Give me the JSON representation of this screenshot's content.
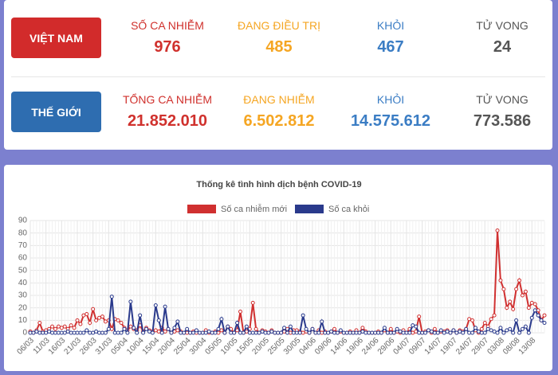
{
  "stats": {
    "rows": [
      {
        "label": "VIỆT NAM",
        "color": "#d22b2b",
        "columns": [
          {
            "label": "SỐ CA NHIỄM",
            "value": "976",
            "color": "#d0312d"
          },
          {
            "label": "ĐANG ĐIỀU TRỊ",
            "value": "485",
            "color": "#f5a623"
          },
          {
            "label": "KHỎI",
            "value": "467",
            "color": "#3b7dc4"
          },
          {
            "label": "TỬ VONG",
            "value": "24",
            "color": "#555555"
          }
        ]
      },
      {
        "label": "THẾ GIỚI",
        "color": "#2e6db0",
        "columns": [
          {
            "label": "TỔNG CA NHIỄM",
            "value": "21.852.010",
            "color": "#d0312d"
          },
          {
            "label": "ĐANG NHIỄM",
            "value": "6.502.812",
            "color": "#f5a623"
          },
          {
            "label": "KHỎI",
            "value": "14.575.612",
            "color": "#3b7dc4"
          },
          {
            "label": "TỬ VONG",
            "value": "773.586",
            "color": "#555555"
          }
        ]
      }
    ]
  },
  "chart_data": {
    "type": "line",
    "title": "Thống kê tình hình dịch bệnh COVID-19",
    "categories": [
      "06/03",
      null,
      null,
      null,
      null,
      "11/03",
      null,
      null,
      null,
      null,
      "16/03",
      null,
      null,
      null,
      null,
      "21/03",
      null,
      null,
      null,
      null,
      "26/03",
      null,
      null,
      null,
      null,
      "31/03",
      null,
      null,
      null,
      null,
      "05/04",
      null,
      null,
      null,
      null,
      "10/04",
      null,
      null,
      null,
      null,
      "15/04",
      null,
      null,
      null,
      null,
      "20/04",
      null,
      null,
      null,
      null,
      "25/04",
      null,
      null,
      null,
      null,
      "30/04",
      null,
      null,
      null,
      null,
      "05/05",
      null,
      null,
      null,
      null,
      "10/05",
      null,
      null,
      null,
      null,
      "15/05",
      null,
      null,
      null,
      null,
      "20/05",
      null,
      null,
      null,
      null,
      "25/05",
      null,
      null,
      null,
      null,
      "30/05",
      null,
      null,
      null,
      null,
      "04/06",
      null,
      null,
      null,
      null,
      "09/06",
      null,
      null,
      null,
      null,
      "14/06",
      null,
      null,
      null,
      null,
      "19/06",
      null,
      null,
      null,
      null,
      "24/06",
      null,
      null,
      null,
      null,
      "29/06",
      null,
      null,
      null,
      null,
      "04/07",
      null,
      null,
      null,
      null,
      "09/07",
      null,
      null,
      null,
      null,
      "14/07",
      null,
      null,
      null,
      null,
      "19/07",
      null,
      null,
      null,
      null,
      "24/07",
      null,
      null,
      null,
      null,
      "29/07",
      null,
      null,
      null,
      null,
      "03/08",
      null,
      null,
      null,
      null,
      "08/08",
      null,
      null,
      null,
      null,
      "13/08",
      null,
      null,
      null,
      null
    ],
    "series": [
      {
        "name": "Số ca nhiễm mới",
        "color": "#d03030",
        "values": [
          1,
          0,
          2,
          8,
          1,
          2,
          3,
          5,
          3,
          5,
          4,
          5,
          3,
          6,
          4,
          10,
          7,
          14,
          15,
          8,
          19,
          10,
          12,
          13,
          9,
          10,
          3,
          11,
          10,
          8,
          4,
          2,
          5,
          3,
          2,
          6,
          1,
          4,
          2,
          1,
          2,
          1,
          4,
          1,
          3,
          0,
          1,
          2,
          1,
          0,
          0,
          0,
          1,
          0,
          0,
          0,
          2,
          0,
          0,
          1,
          0,
          2,
          0,
          5,
          3,
          0,
          2,
          17,
          0,
          1,
          3,
          24,
          3,
          0,
          2,
          1,
          0,
          2,
          0,
          0,
          0,
          1,
          3,
          0,
          2,
          2,
          1,
          0,
          1,
          0,
          3,
          0,
          2,
          0,
          1,
          0,
          1,
          3,
          0,
          1,
          0,
          0,
          1,
          0,
          2,
          0,
          4,
          1,
          0,
          0,
          0,
          1,
          0,
          2,
          0,
          3,
          0,
          1,
          0,
          2,
          0,
          3,
          0,
          1,
          13,
          0,
          1,
          2,
          0,
          3,
          0,
          1,
          1,
          2,
          0,
          2,
          0,
          2,
          1,
          3,
          11,
          10,
          2,
          0,
          3,
          8,
          5,
          11,
          14,
          82,
          42,
          35,
          20,
          25,
          19,
          35,
          42,
          30,
          33,
          20,
          24,
          23,
          18,
          10,
          14
        ]
      },
      {
        "name": "Số ca khỏi",
        "color": "#2a3a8c",
        "values": [
          0,
          0,
          1,
          0,
          0,
          0,
          1,
          0,
          0,
          0,
          0,
          0,
          1,
          0,
          0,
          0,
          0,
          0,
          2,
          0,
          0,
          1,
          0,
          0,
          0,
          3,
          29,
          0,
          0,
          0,
          3,
          0,
          25,
          4,
          0,
          14,
          0,
          3,
          1,
          0,
          22,
          10,
          0,
          21,
          3,
          0,
          4,
          9,
          0,
          0,
          3,
          0,
          0,
          2,
          0,
          0,
          0,
          1,
          0,
          0,
          3,
          11,
          0,
          5,
          0,
          0,
          8,
          0,
          0,
          5,
          0,
          0,
          0,
          0,
          1,
          0,
          0,
          1,
          0,
          0,
          0,
          4,
          0,
          5,
          0,
          0,
          0,
          14,
          3,
          0,
          3,
          0,
          0,
          9,
          0,
          0,
          1,
          0,
          0,
          2,
          0,
          0,
          0,
          0,
          0,
          0,
          1,
          0,
          0,
          0,
          0,
          0,
          0,
          4,
          0,
          0,
          0,
          3,
          1,
          0,
          0,
          0,
          6,
          5,
          0,
          0,
          0,
          2,
          1,
          0,
          0,
          2,
          0,
          1,
          0,
          2,
          0,
          1,
          0,
          3,
          0,
          0,
          4,
          1,
          0,
          0,
          3,
          2,
          1,
          0,
          4,
          0,
          2,
          3,
          0,
          10,
          0,
          3,
          5,
          0,
          12,
          18,
          14,
          10,
          8
        ]
      }
    ],
    "ylim": [
      0,
      90
    ],
    "yticks": [
      0,
      10,
      20,
      30,
      40,
      50,
      60,
      70,
      80,
      90
    ],
    "grid": true
  }
}
